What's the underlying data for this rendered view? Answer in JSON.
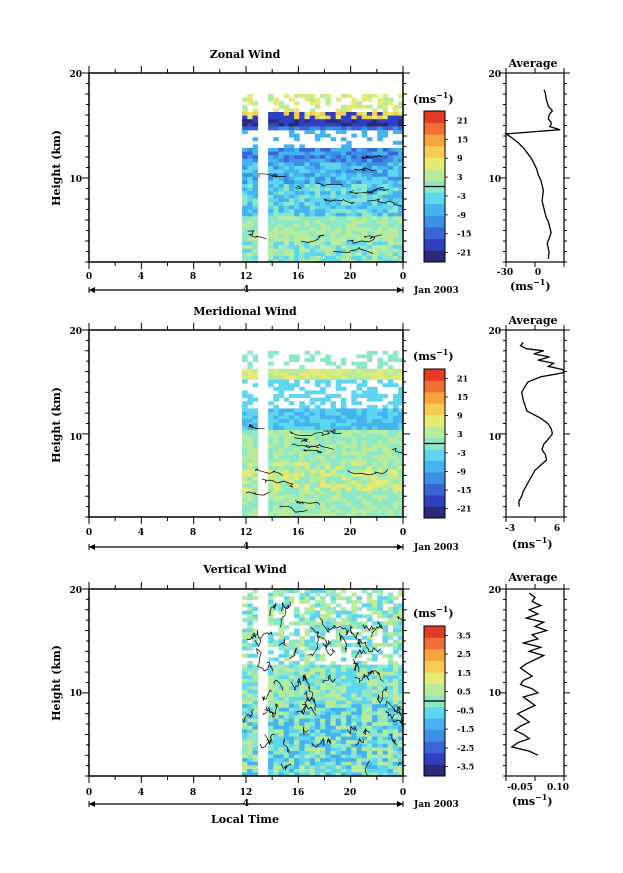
{
  "colors": [
    "#2a2a7a",
    "#2f3fbf",
    "#3b64d8",
    "#3d8fe6",
    "#44b3ef",
    "#5fd6ef",
    "#8ee8c8",
    "#b8ec9a",
    "#e5ea72",
    "#f6cd52",
    "#f7a43f",
    "#f06e33",
    "#e43a24"
  ],
  "shared": {
    "date_label": "Jan 2003",
    "day_label": "4",
    "xlabel": "Local Time",
    "unit_label": "(ms",
    "unit_sup": "−1",
    "unit_close": ")",
    "avg_unit": "(ms",
    "avg_unit_sup": "−1",
    "avg_unit_close": ")"
  },
  "chart_data": [
    {
      "type": "heatmap",
      "title": "Zonal Wind",
      "ylabel": "Height (km)",
      "xlim": [
        0,
        24
      ],
      "x_ticks": [
        "0",
        "4",
        "8",
        "12",
        "16",
        "20",
        "0"
      ],
      "ylim": [
        2,
        20
      ],
      "y_ticks": [
        "10",
        "20"
      ],
      "colorbar_ticks": [
        "21",
        "15",
        "9",
        "3",
        "-3",
        "-9",
        "-15",
        "-21"
      ],
      "colorbar_range": [
        -24,
        24
      ],
      "data_start_hour": 11.7,
      "gap_hours": [
        13.0,
        13.5
      ],
      "valid_height_range": [
        2,
        18
      ]
    },
    {
      "type": "line",
      "title": "Average",
      "xlim": [
        -30,
        15
      ],
      "x_ticks": [
        "-30",
        "0"
      ],
      "ylim": [
        2,
        20
      ],
      "y_ticks": [
        "10",
        "20"
      ],
      "x": [
        -0.5,
        0.5,
        1,
        2,
        3,
        6,
        4,
        3,
        3,
        5,
        5,
        4,
        12,
        -35,
        -25,
        -20,
        -16,
        -13,
        -10,
        -8,
        -6,
        -5,
        -3,
        -2,
        -1,
        -1.5,
        -2,
        -1,
        0,
        1,
        3,
        4,
        5,
        4,
        3,
        2,
        2.5,
        3,
        3.5,
        3,
        3
      ],
      "y": [
        18.4,
        18.1,
        17.6,
        17.2,
        16.8,
        16.4,
        16.1,
        15.8,
        15.6,
        15.3,
        15.1,
        14.9,
        14.6,
        14.2,
        13.8,
        13.3,
        12.8,
        12.3,
        11.8,
        11.3,
        10.8,
        10.3,
        9.8,
        9.3,
        8.8,
        8.3,
        7.8,
        7.3,
        6.8,
        6.3,
        5.8,
        5.3,
        4.8,
        4.4,
        4.1,
        3.8,
        3.5,
        3.2,
        2.9,
        2.6,
        2.3
      ]
    },
    {
      "type": "heatmap",
      "title": "Meridional Wind",
      "ylabel": "Height (km)",
      "xlim": [
        0,
        24
      ],
      "x_ticks": [
        "0",
        "4",
        "8",
        "12",
        "16",
        "20",
        "0"
      ],
      "ylim": [
        2,
        20
      ],
      "y_ticks": [
        "10",
        "20"
      ],
      "colorbar_ticks": [
        "21",
        "15",
        "9",
        "3",
        "-3",
        "-9",
        "-15",
        "-21"
      ],
      "colorbar_range": [
        -24,
        24
      ],
      "data_start_hour": 11.7,
      "gap_hours": [
        13.0,
        13.5
      ],
      "valid_height_range": [
        2,
        18
      ]
    },
    {
      "type": "line",
      "title": "Average",
      "xlim": [
        -3,
        7
      ],
      "x_ticks": [
        "-3",
        "6"
      ],
      "ylim": [
        2,
        20
      ],
      "y_ticks": [
        "10",
        "20"
      ],
      "x": [
        0,
        -0.5,
        0.5,
        3.5,
        1.8,
        4.5,
        2.5,
        5.2,
        4.3,
        6.8,
        7.0,
        3.0,
        0.8,
        0.2,
        -0.3,
        0.0,
        0.6,
        3.0,
        4.2,
        4.8,
        5.0,
        4.3,
        3.5,
        3.2,
        3.8,
        4.0,
        3.0,
        2.0,
        1.5,
        1.0,
        0.5,
        0.0,
        -0.3,
        -0.8,
        -0.7
      ],
      "y": [
        18.8,
        18.5,
        18.2,
        18.0,
        17.7,
        17.4,
        17.1,
        16.8,
        16.5,
        16.2,
        15.9,
        15.5,
        15.0,
        14.5,
        14.0,
        13.2,
        12.2,
        11.5,
        11.0,
        10.5,
        10.0,
        9.5,
        9.0,
        8.5,
        8.0,
        7.5,
        7.0,
        6.5,
        6.0,
        5.5,
        5.0,
        4.5,
        4.0,
        3.5,
        3.0
      ]
    },
    {
      "type": "heatmap",
      "title": "Vertical Wind",
      "ylabel": "Height (km)",
      "xlabel": "Local Time",
      "xlim": [
        0,
        24
      ],
      "x_ticks": [
        "0",
        "4",
        "8",
        "12",
        "16",
        "20",
        "0"
      ],
      "ylim": [
        2,
        20
      ],
      "y_ticks": [
        "10",
        "20"
      ],
      "colorbar_ticks": [
        "3.5",
        "2.5",
        "1.5",
        "0.5",
        "-0.5",
        "-1.5",
        "-2.5",
        "-3.5"
      ],
      "colorbar_range": [
        -4,
        4
      ],
      "data_start_hour": 11.7,
      "gap_hours": [
        13.0,
        13.5
      ],
      "valid_height_range": [
        2,
        20
      ]
    },
    {
      "type": "line",
      "title": "Average",
      "xlim": [
        -0.08,
        0.12
      ],
      "x_ticks": [
        "-0.05",
        "0.10"
      ],
      "ylim": [
        2,
        20
      ],
      "y_ticks": [
        "10",
        "20"
      ],
      "x": [
        0.0,
        0.02,
        0.01,
        0.04,
        0.0,
        0.03,
        -0.01,
        0.05,
        0.02,
        0.06,
        0.01,
        0.03,
        -0.02,
        0.04,
        0.0,
        0.05,
        0.02,
        -0.01,
        -0.03,
        -0.01,
        0.01,
        -0.02,
        -0.03,
        0.01,
        0.03,
        -0.02,
        0.0,
        0.02,
        -0.01,
        -0.04,
        -0.02,
        0.0,
        -0.03,
        -0.05,
        -0.02,
        0.0,
        -0.04,
        -0.06,
        0.0,
        0.03
      ],
      "y": [
        19.6,
        19.2,
        18.8,
        18.4,
        18.0,
        17.6,
        17.2,
        16.8,
        16.4,
        16.0,
        15.6,
        15.2,
        14.8,
        14.4,
        14.0,
        13.6,
        13.2,
        12.8,
        12.4,
        12.0,
        11.6,
        11.2,
        10.8,
        10.4,
        10.0,
        9.6,
        9.2,
        8.8,
        8.4,
        8.0,
        7.6,
        7.2,
        6.8,
        6.4,
        6.0,
        5.6,
        5.2,
        4.8,
        4.4,
        4.0
      ]
    }
  ]
}
